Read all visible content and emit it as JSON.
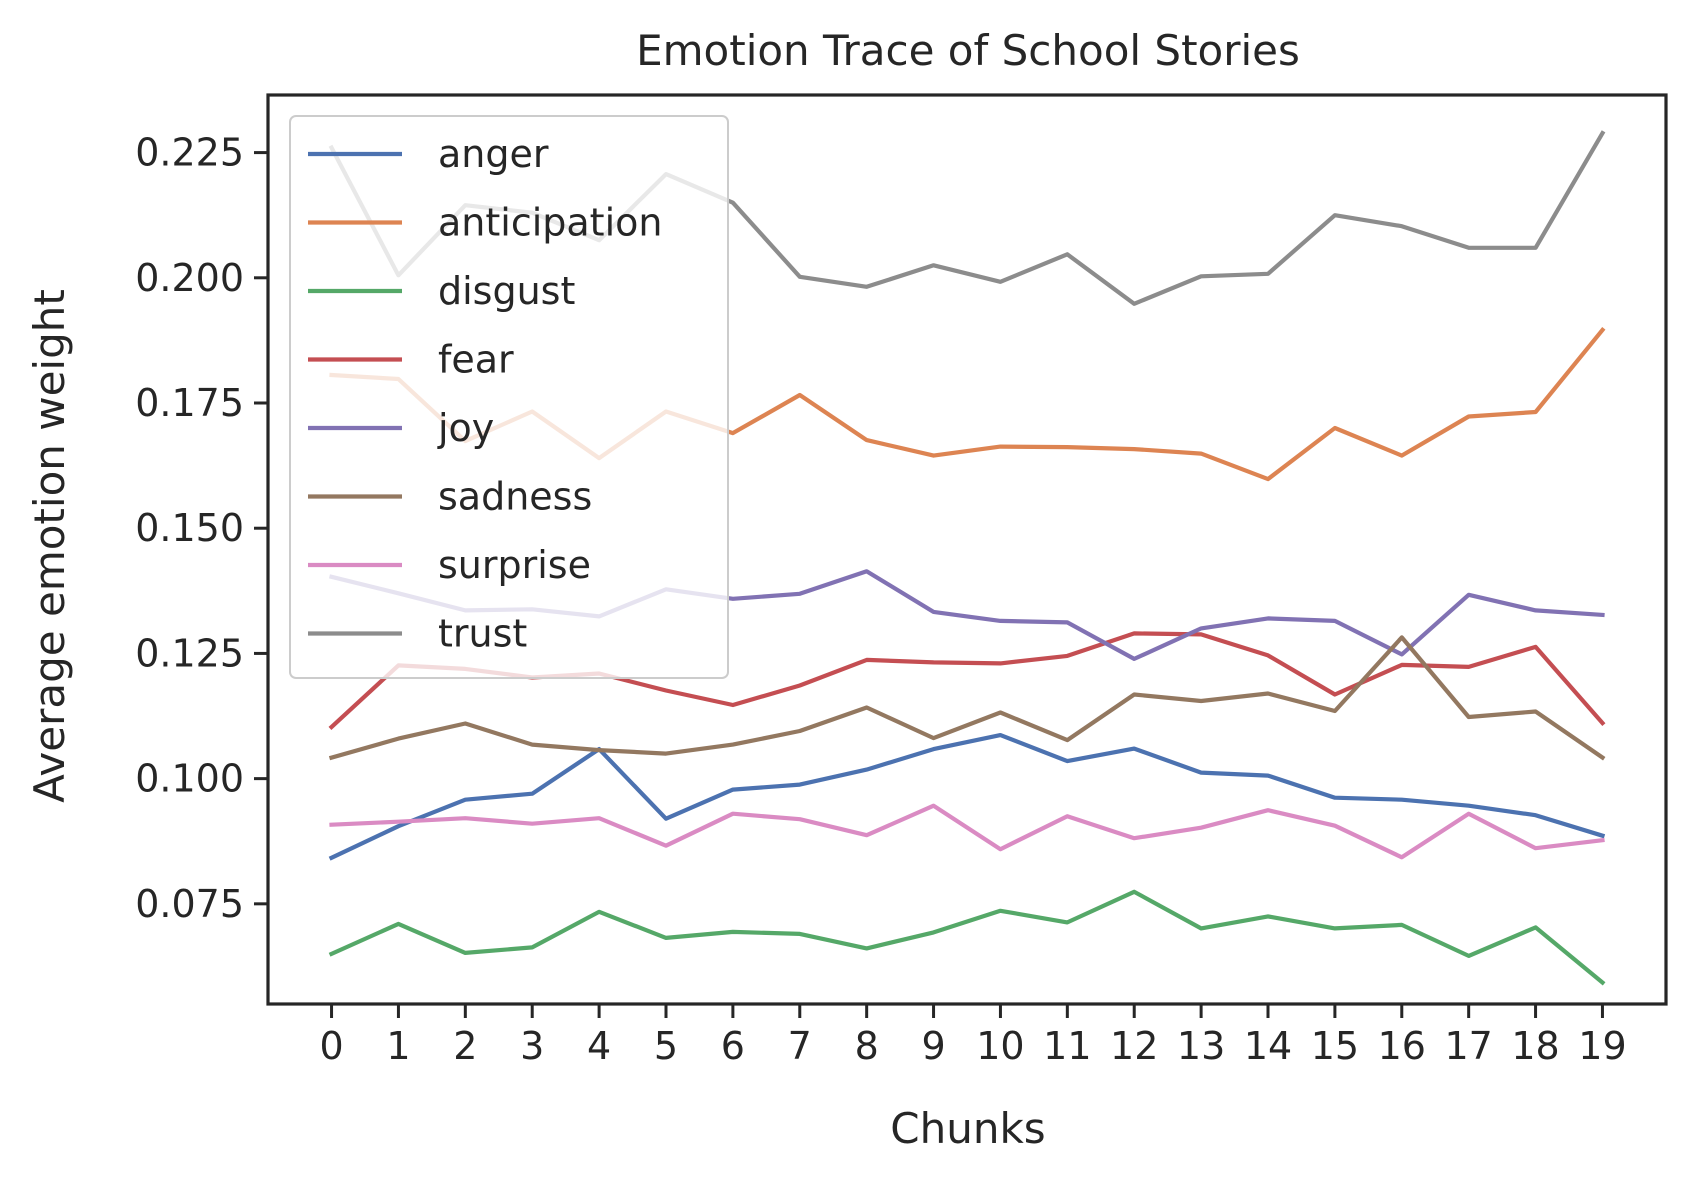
{
  "chart_data": {
    "type": "line",
    "title": "Emotion Trace of School Stories",
    "xlabel": "Chunks",
    "ylabel": "Average emotion weight",
    "x": [
      0,
      1,
      2,
      3,
      4,
      5,
      6,
      7,
      8,
      9,
      10,
      11,
      12,
      13,
      14,
      15,
      16,
      17,
      18,
      19
    ],
    "x_tick_labels": [
      "0",
      "1",
      "2",
      "3",
      "4",
      "5",
      "6",
      "7",
      "8",
      "9",
      "10",
      "11",
      "12",
      "13",
      "14",
      "15",
      "16",
      "17",
      "18",
      "19"
    ],
    "y_ticks": [
      0.075,
      0.1,
      0.125,
      0.15,
      0.175,
      0.2,
      0.225
    ],
    "y_tick_labels": [
      "0.075",
      "0.100",
      "0.125",
      "0.150",
      "0.175",
      "0.200",
      "0.225"
    ],
    "ylim": [
      0.055,
      0.2365
    ],
    "xlim": [
      -0.95,
      19.95
    ],
    "grid": false,
    "legend_position": "upper-left",
    "series": [
      {
        "name": "anger",
        "color": "#4c72b0",
        "values": [
          0.0842,
          0.0905,
          0.0958,
          0.097,
          0.1059,
          0.092,
          0.0978,
          0.0988,
          0.1018,
          0.1059,
          0.1087,
          0.1035,
          0.106,
          0.1012,
          0.1006,
          0.0962,
          0.0958,
          0.0946,
          0.0927,
          0.0886
        ]
      },
      {
        "name": "anticipation",
        "color": "#dd8452",
        "values": [
          0.1806,
          0.1798,
          0.1674,
          0.1733,
          0.164,
          0.1733,
          0.169,
          0.1766,
          0.1676,
          0.1645,
          0.1663,
          0.1662,
          0.1658,
          0.1649,
          0.1598,
          0.17,
          0.1645,
          0.1723,
          0.1732,
          0.1896
        ]
      },
      {
        "name": "disgust",
        "color": "#55a868",
        "values": [
          0.065,
          0.071,
          0.0652,
          0.0663,
          0.0734,
          0.0682,
          0.0694,
          0.069,
          0.0661,
          0.0693,
          0.0736,
          0.0713,
          0.0774,
          0.0701,
          0.0725,
          0.0701,
          0.0708,
          0.0646,
          0.0703,
          0.0593
        ]
      },
      {
        "name": "fear",
        "color": "#c44e52",
        "values": [
          0.1103,
          0.1226,
          0.1219,
          0.1202,
          0.121,
          0.1176,
          0.1147,
          0.1186,
          0.1237,
          0.1232,
          0.123,
          0.1245,
          0.129,
          0.1288,
          0.1246,
          0.1168,
          0.1227,
          0.1223,
          0.1263,
          0.1111
        ]
      },
      {
        "name": "joy",
        "color": "#8172b3",
        "values": [
          0.1403,
          0.137,
          0.1336,
          0.1338,
          0.1324,
          0.1378,
          0.1359,
          0.1369,
          0.1414,
          0.1333,
          0.1315,
          0.1312,
          0.1239,
          0.13,
          0.132,
          0.1315,
          0.1248,
          0.1367,
          0.1336,
          0.1327
        ]
      },
      {
        "name": "sadness",
        "color": "#937860",
        "values": [
          0.1042,
          0.108,
          0.111,
          0.1068,
          0.1057,
          0.105,
          0.1068,
          0.1095,
          0.1142,
          0.1081,
          0.1132,
          0.1077,
          0.1168,
          0.1155,
          0.117,
          0.1135,
          0.1282,
          0.1123,
          0.1134,
          0.1042
        ]
      },
      {
        "name": "surprise",
        "color": "#da8bc3",
        "values": [
          0.0908,
          0.0914,
          0.0921,
          0.091,
          0.0921,
          0.0866,
          0.093,
          0.0919,
          0.0887,
          0.0946,
          0.0859,
          0.0925,
          0.0881,
          0.0902,
          0.0937,
          0.0906,
          0.0843,
          0.093,
          0.0861,
          0.0877
        ]
      },
      {
        "name": "trust",
        "color": "#8c8c8c",
        "values": [
          0.226,
          0.2005,
          0.2145,
          0.213,
          0.2075,
          0.2207,
          0.215,
          0.2002,
          0.1982,
          0.2025,
          0.1992,
          0.2047,
          0.1948,
          0.2003,
          0.2008,
          0.2125,
          0.2103,
          0.206,
          0.206,
          0.2289
        ]
      }
    ]
  }
}
